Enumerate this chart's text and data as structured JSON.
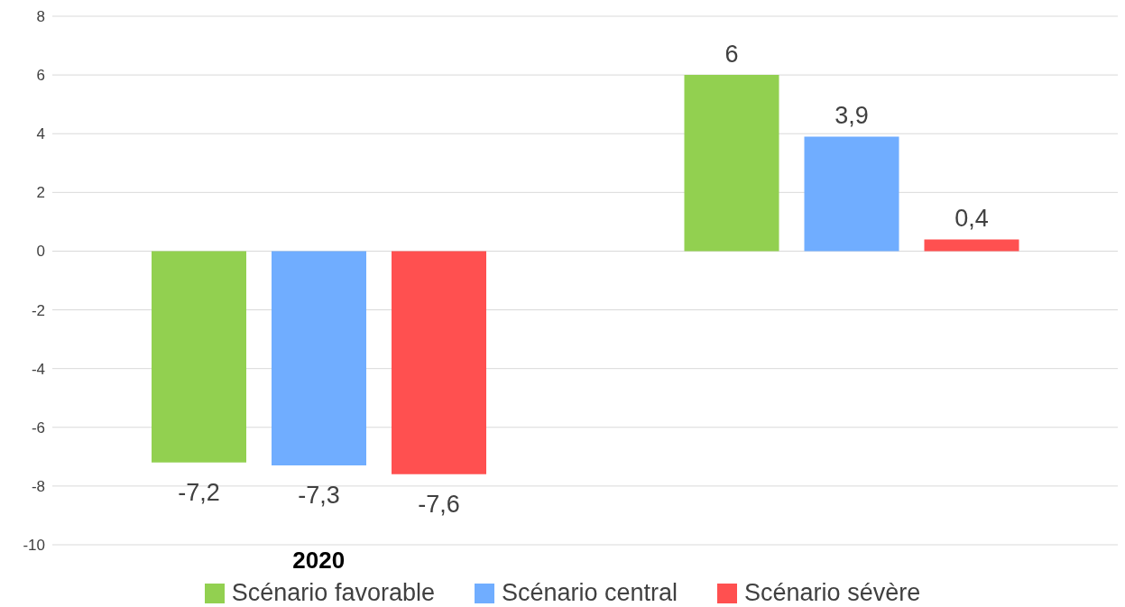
{
  "chart_data": {
    "type": "bar",
    "categories": [
      "2020",
      null
    ],
    "series": [
      {
        "name": "Scénario favorable",
        "color": "#92d050",
        "values": [
          -7.2,
          6
        ],
        "value_labels": [
          "-7,2",
          "6"
        ]
      },
      {
        "name": "Scénario central",
        "color": "#70adff",
        "values": [
          -7.3,
          3.9
        ],
        "value_labels": [
          "-7,3",
          "3,9"
        ]
      },
      {
        "name": "Scénario sévère",
        "color": "#ff5050",
        "values": [
          -7.6,
          0.4
        ],
        "value_labels": [
          "-7,6",
          "0,4"
        ]
      }
    ],
    "ylim": [
      -10,
      8
    ],
    "yticks": [
      -10,
      -8,
      -6,
      -4,
      -2,
      0,
      2,
      4,
      6,
      8
    ],
    "grid": "y",
    "legend": "bottom"
  }
}
